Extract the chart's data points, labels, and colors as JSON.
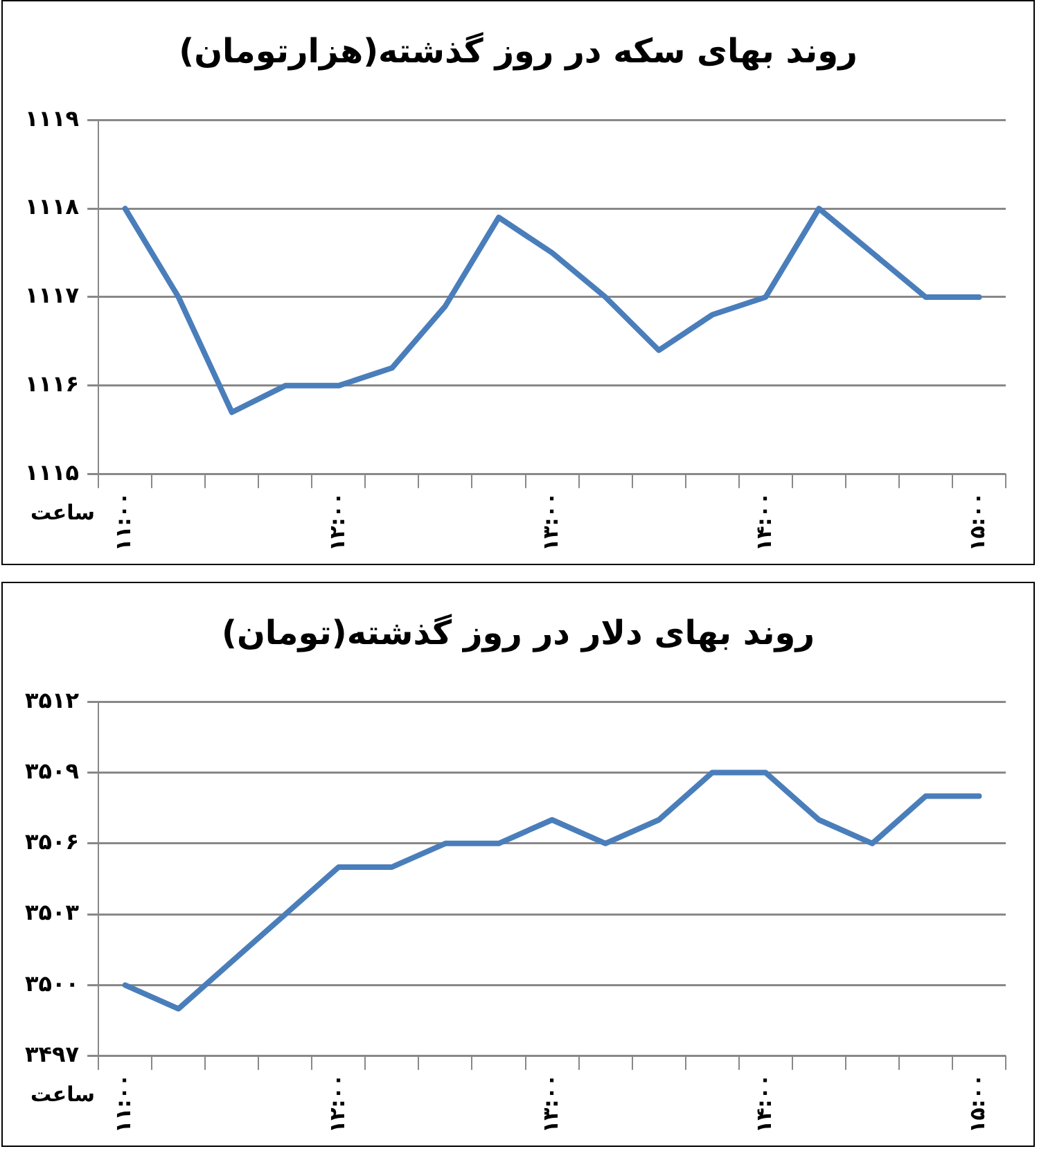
{
  "chart_data": [
    {
      "type": "line",
      "title": "روند بهای سکه در روز گذشته(هزارتومان)",
      "xlabel": "ساعت",
      "categories": [
        "۱۱:۰۰",
        null,
        null,
        null,
        "۱۲:۰۰",
        null,
        null,
        null,
        "۱۳:۰۰",
        null,
        null,
        null,
        "۱۴:۰۰",
        null,
        null,
        null,
        "۱۵:۰۰"
      ],
      "series": [
        {
          "color": "#4a7ebb",
          "values": [
            1118,
            1117,
            1115.7,
            1116,
            1116,
            1116.2,
            1116.9,
            1117.9,
            1117.5,
            1117,
            1116.4,
            1116.8,
            1117,
            1118,
            1117.5,
            1117,
            1117
          ]
        }
      ],
      "ylim": [
        1115,
        1119
      ],
      "yticks": [
        {
          "value": 1115,
          "label": "۱۱۱۵"
        },
        {
          "value": 1116,
          "label": "۱۱۱۶"
        },
        {
          "value": 1117,
          "label": "۱۱۱۷"
        },
        {
          "value": 1118,
          "label": "۱۱۱۸"
        },
        {
          "value": 1119,
          "label": "۱۱۱۹"
        }
      ],
      "grid": "y",
      "legend": false,
      "marker": "none",
      "line_style": "solid"
    },
    {
      "type": "line",
      "title": "روند بهای دلار در روز گذشته(تومان)",
      "xlabel": "ساعت",
      "categories": [
        "۱۱:۰۰",
        null,
        null,
        null,
        "۱۲:۰۰",
        null,
        null,
        null,
        "۱۳:۰۰",
        null,
        null,
        null,
        "۱۴:۰۰",
        null,
        null,
        null,
        "۱۵:۰۰"
      ],
      "series": [
        {
          "color": "#4a7ebb",
          "values": [
            3500,
            3499,
            3501,
            3503,
            3505,
            3505,
            3506,
            3506,
            3507,
            3506,
            3507,
            3509,
            3509,
            3507,
            3506,
            3508,
            3508
          ]
        }
      ],
      "ylim": [
        3497,
        3512
      ],
      "yticks": [
        {
          "value": 3497,
          "label": "۳۴۹۷"
        },
        {
          "value": 3500,
          "label": "۳۵۰۰"
        },
        {
          "value": 3503,
          "label": "۳۵۰۳"
        },
        {
          "value": 3506,
          "label": "۳۵۰۶"
        },
        {
          "value": 3509,
          "label": "۳۵۰۹"
        },
        {
          "value": 3512,
          "label": "۳۵۱۲"
        }
      ],
      "grid": "y",
      "legend": false,
      "marker": "none",
      "line_style": "solid"
    }
  ]
}
